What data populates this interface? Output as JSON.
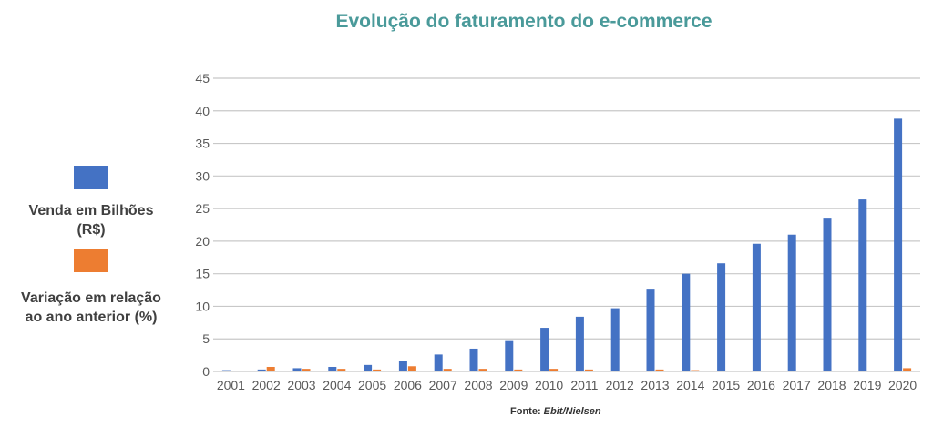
{
  "chart_data": {
    "type": "bar",
    "title": "Evolução do faturamento do e-commerce",
    "categories": [
      "2001",
      "2002",
      "2003",
      "2004",
      "2005",
      "2006",
      "2007",
      "2008",
      "2009",
      "2010",
      "2011",
      "2012",
      "2013",
      "2014",
      "2015",
      "2016",
      "2017",
      "2018",
      "2019",
      "2020"
    ],
    "series": [
      {
        "name": "Venda em Bilhões (R$)",
        "color": "#4472c4",
        "values": [
          0.2,
          0.3,
          0.5,
          0.7,
          1.0,
          1.6,
          2.6,
          3.5,
          4.8,
          6.7,
          8.4,
          9.7,
          12.7,
          15.0,
          16.6,
          19.6,
          21.0,
          23.6,
          26.4,
          38.8
        ]
      },
      {
        "name": "Variação em relação ao ano anterior (%)",
        "color": "#ed7d31",
        "values": [
          0.0,
          0.7,
          0.4,
          0.4,
          0.3,
          0.8,
          0.4,
          0.4,
          0.3,
          0.4,
          0.3,
          0.1,
          0.3,
          0.2,
          0.1,
          0.0,
          0.0,
          0.1,
          0.1,
          0.5
        ]
      }
    ],
    "ylim": [
      0,
      45
    ],
    "yticks": [
      0,
      5,
      10,
      15,
      20,
      25,
      30,
      35,
      40,
      45
    ],
    "grid": true,
    "legend_position": "left",
    "legend": {
      "item1_line1": "Venda em Bilhões",
      "item1_line2": "(R$)",
      "item2_line1": "Variação em relação",
      "item2_line2": "ao ano anterior (%)"
    }
  },
  "source": {
    "prefix": "Fonte: ",
    "value": "Ebit/Nielsen"
  }
}
